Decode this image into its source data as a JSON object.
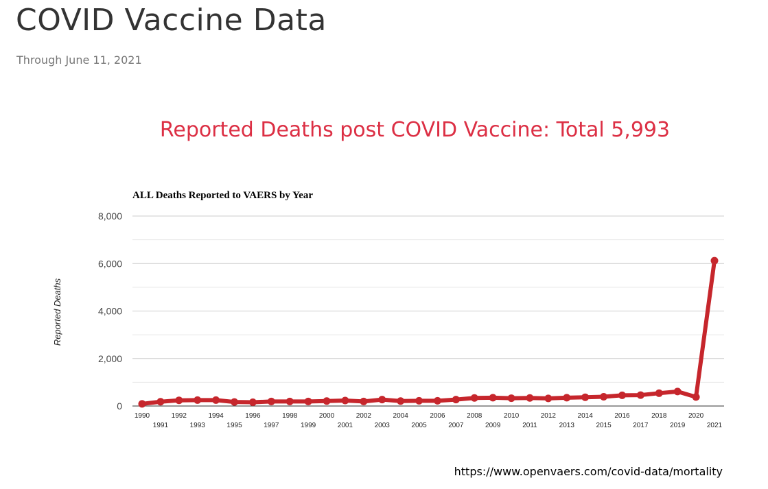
{
  "page": {
    "title": "COVID Vaccine Data",
    "subtitle": "Through June 11, 2021",
    "headline": "Reported Deaths post COVID Vaccine: Total 5,993",
    "source": "https://www.openvaers.com/covid-data/mortality"
  },
  "colors": {
    "headline": "#dc2f44",
    "series": "#c6262c",
    "grid": "#cccccc"
  },
  "chart_data": {
    "type": "line",
    "title": "ALL Deaths Reported to VAERS by Year",
    "ylabel": "Reported Deaths",
    "xlabel": "",
    "ylim": [
      0,
      8000
    ],
    "yticks": [
      "0",
      "2,000",
      "4,000",
      "6,000",
      "8,000"
    ],
    "grid": true,
    "x": [
      "1990",
      "1991",
      "1992",
      "1993",
      "1994",
      "1995",
      "1996",
      "1997",
      "1998",
      "1999",
      "2000",
      "2001",
      "2002",
      "2003",
      "2004",
      "2005",
      "2006",
      "2007",
      "2008",
      "2009",
      "2010",
      "2011",
      "2012",
      "2013",
      "2014",
      "2015",
      "2016",
      "2017",
      "2018",
      "2019",
      "2020",
      "2021"
    ],
    "series": [
      {
        "values": [
          90,
          180,
          240,
          250,
          250,
          170,
          160,
          190,
          190,
          190,
          210,
          230,
          190,
          270,
          210,
          220,
          220,
          270,
          340,
          350,
          330,
          340,
          320,
          350,
          370,
          390,
          450,
          460,
          540,
          610,
          380,
          6120
        ]
      }
    ]
  }
}
